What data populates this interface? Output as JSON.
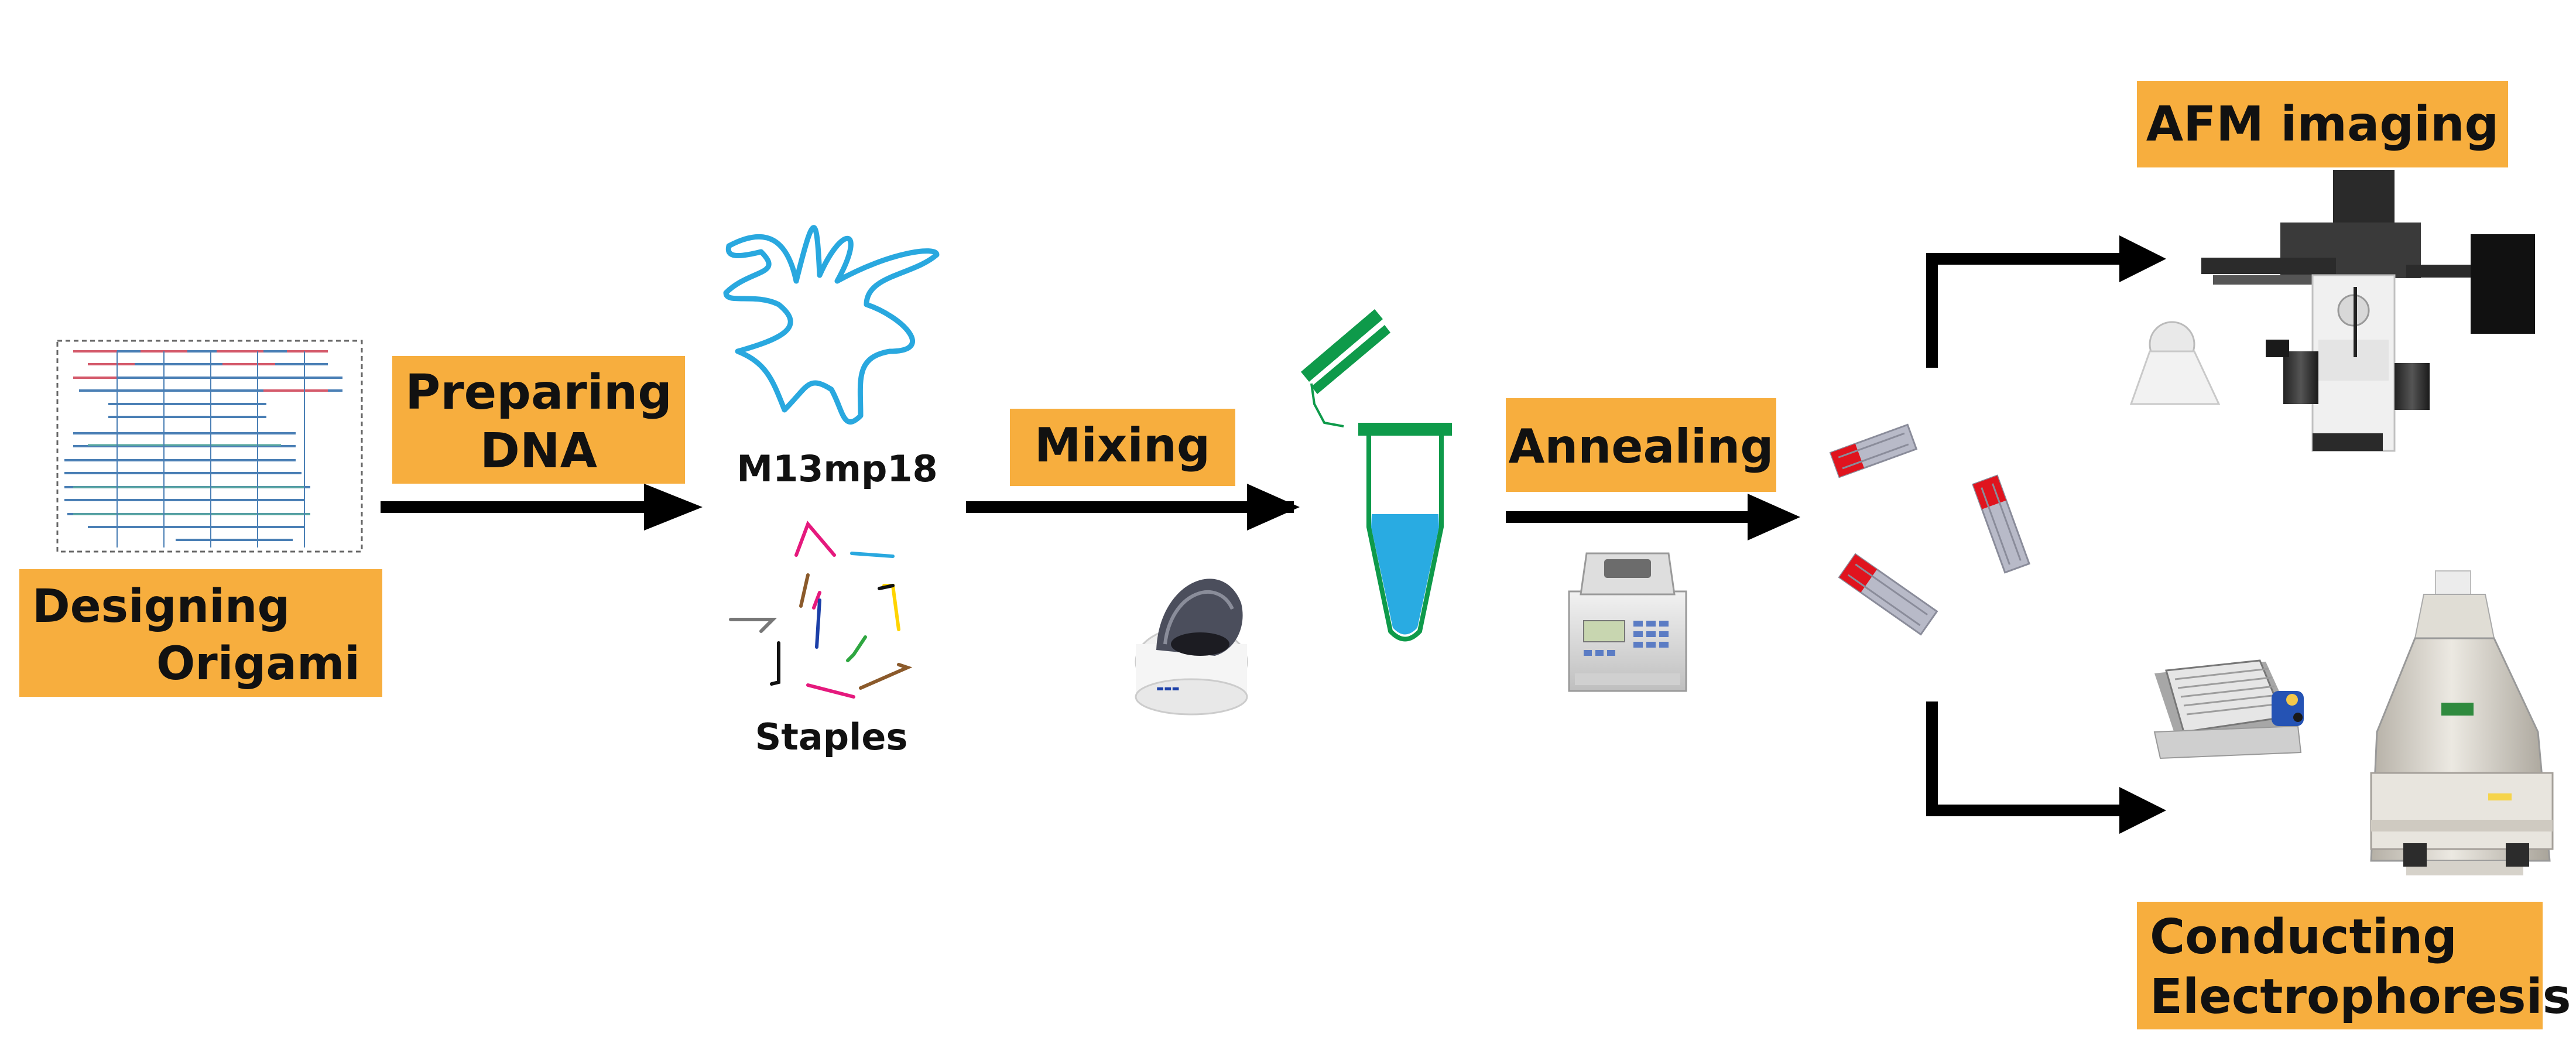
{
  "steps": {
    "designing": {
      "line1": "Designing",
      "line2": "Origami"
    },
    "preparing": {
      "line1": "Preparing",
      "line2": "DNA"
    },
    "mixing": {
      "label": "Mixing"
    },
    "annealing": {
      "label": "Annealing"
    },
    "afm": {
      "label": "AFM imaging"
    },
    "electrophoresis": {
      "line1": "Conducting",
      "line2": "Electrophoresis"
    }
  },
  "materials": {
    "scaffold": "M13mp18",
    "staples": "Staples"
  },
  "colors": {
    "label_box": "#F7AE3E",
    "arrow": "#000000",
    "scaffold_strand": "#29A8DF",
    "tube_green": "#0E9A4A",
    "tube_liquid": "#29ABE2",
    "origami_red": "#E0141E",
    "origami_gray": "#B8BAC8",
    "staple_colors": [
      "#E5197D",
      "#1B3FA8",
      "#2EA640",
      "#8B5A2B",
      "#FFD400",
      "#111111",
      "#29A8DF",
      "#777777"
    ]
  },
  "icons": [
    "origami-design-icon",
    "scaffold-strand-icon",
    "staples-icon",
    "pipette-icon",
    "centrifuge-icon",
    "tube-icon",
    "thermocycler-icon",
    "origami-product-icon",
    "afm-microscope-icon",
    "gel-tank-icon",
    "gel-imager-icon"
  ]
}
